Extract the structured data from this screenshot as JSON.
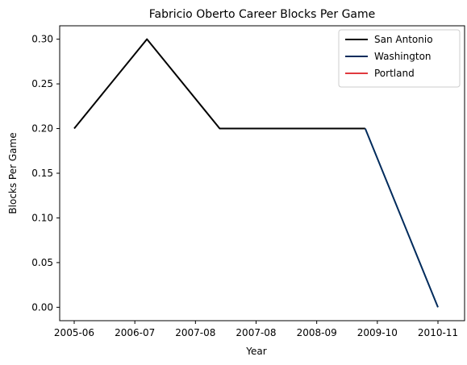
{
  "chart_data": {
    "type": "line",
    "title": "Fabricio Oberto Career Blocks Per Game",
    "xlabel": "Year",
    "ylabel": "Blocks Per Game",
    "x_tick_labels": [
      "2005-06",
      "2006-07",
      "2007-08",
      "2007-08",
      "2008-09",
      "2009-10",
      "2010-11"
    ],
    "ylim": [
      -0.015,
      0.315
    ],
    "y_ticks": [
      "0.00",
      "0.05",
      "0.10",
      "0.15",
      "0.20",
      "0.25",
      "0.30"
    ],
    "grid": false,
    "legend_position": "top-right",
    "series": [
      {
        "name": "San Antonio",
        "color": "#000000",
        "points": [
          {
            "x": "2005-06",
            "y": 0.2
          },
          {
            "x": "2006-07",
            "y": 0.3
          },
          {
            "x": "2007-08",
            "y": 0.2
          },
          {
            "x": "2008-09",
            "y": 0.2
          },
          {
            "x": "2009-10",
            "y": 0.2
          }
        ]
      },
      {
        "name": "Washington",
        "color": "#002B5C",
        "points": [
          {
            "x": "2009-10",
            "y": 0.2
          },
          {
            "x": "2010-11",
            "y": 0.0
          }
        ]
      },
      {
        "name": "Portland",
        "color": "#E03A3E",
        "points": []
      }
    ]
  }
}
